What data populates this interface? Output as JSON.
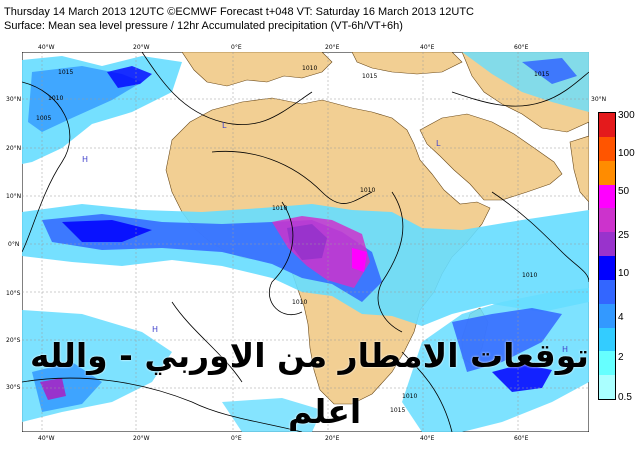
{
  "header": {
    "line1": "Thursday 14 March 2013 12UTC ©ECMWF Forecast t+048 VT: Saturday 16 March 2013 12UTC",
    "line2": "Surface: Mean sea level pressure / 12hr Accumulated precipitation (VT-6h/VT+6h)"
  },
  "map": {
    "lon_labels": [
      "40°W",
      "20°W",
      "0°E",
      "20°E",
      "40°E",
      "60°E"
    ],
    "lat_labels": [
      "30°N",
      "20°N",
      "10°N",
      "0°N",
      "10°S",
      "20°S",
      "30°S"
    ],
    "isobar_labels": [
      "1015",
      "1010",
      "1005",
      "1010",
      "1015",
      "1010",
      "1010",
      "1015",
      "1010",
      "1015",
      "1010",
      "1010"
    ],
    "pressure_marks": [
      "H",
      "L",
      "L",
      "H",
      "H"
    ],
    "colors": {
      "ocean": "#ffffff",
      "land": "#f2cf93",
      "grid": "#9a9a9a",
      "isobar": "#000000"
    }
  },
  "legend": {
    "labels": [
      "300",
      "100",
      "50",
      "25",
      "10",
      "4",
      "2",
      "0.5"
    ],
    "colors": [
      "#e41a1c",
      "#ff5500",
      "#ff8c00",
      "#ff00ff",
      "#cc33cc",
      "#9933cc",
      "#0000ff",
      "#3366ff",
      "#3399ff",
      "#33ccff",
      "#66ffff",
      "#aaffff"
    ]
  },
  "overlay": {
    "line1": "توقعات الامطار من الاوربي - والله",
    "line2": "اعلم"
  }
}
